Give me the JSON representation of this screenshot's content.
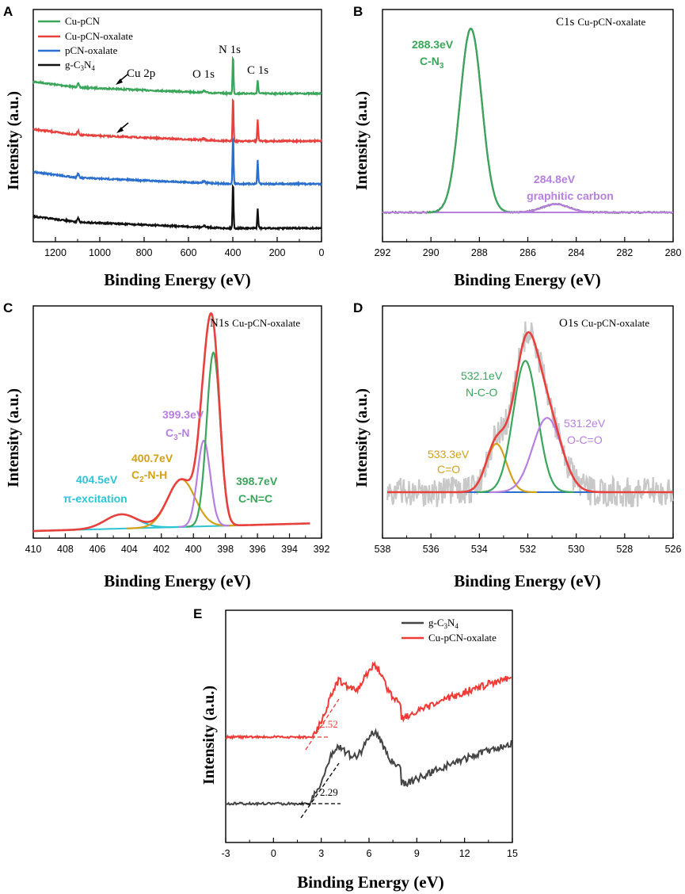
{
  "chart_data": [
    {
      "panel": "A",
      "type": "line",
      "title": "",
      "xlabel": "Binding Energy (eV)",
      "ylabel": "Intensity (a.u.)",
      "xlim": [
        1300,
        0
      ],
      "xticks": [
        "1200",
        "1000",
        "800",
        "600",
        "400",
        "200",
        "0"
      ],
      "series": [
        {
          "name": "Cu-pCN",
          "color": "#3aa65a"
        },
        {
          "name": "Cu-pCN-oxalate",
          "color": "#e8403d"
        },
        {
          "name": "pCN-oxalate",
          "color": "#2a6fcd"
        },
        {
          "name": "g-C3N4",
          "name_main": "g-C",
          "sub1": "3",
          "mid": "N",
          "sub2": "4",
          "color": "#111111"
        }
      ],
      "annotations": {
        "n1s": "N 1s",
        "c1s": "C 1s",
        "o1s": "O 1s",
        "cu2p": "Cu 2p"
      }
    },
    {
      "panel": "B",
      "type": "line",
      "xlabel": "Binding Energy (eV)",
      "ylabel": "Intensity (a.u.)",
      "xlim": [
        292,
        280
      ],
      "xticks": [
        "292",
        "290",
        "288",
        "286",
        "284",
        "282",
        "280"
      ],
      "corner_prefix": "C1s",
      "corner_sample": "Cu-pCN-oxalate",
      "peaks": [
        {
          "ev": "288.3eV",
          "label_main": "C-N",
          "label_sub": "3",
          "color": "#3aa65a",
          "center": 288.35,
          "width": 0.45,
          "height": 1.0
        },
        {
          "ev": "284.8eV",
          "label": "graphitic carbon",
          "color": "#b77fe0",
          "center": 284.85,
          "width": 0.55,
          "height": 0.045
        }
      ]
    },
    {
      "panel": "C",
      "type": "line",
      "xlabel": "Binding Energy (eV)",
      "ylabel": "Intensity (a.u.)",
      "xlim": [
        410,
        392
      ],
      "xticks": [
        "410",
        "408",
        "406",
        "404",
        "402",
        "400",
        "398",
        "396",
        "394",
        "392"
      ],
      "corner_prefix": "N1s",
      "corner_sample": "Cu-pCN-oxalate",
      "peaks": [
        {
          "ev": "404.5eV",
          "label": "π-excitation",
          "color": "#2ec4d4",
          "center": 404.5,
          "width": 1.0,
          "height": 0.06
        },
        {
          "ev": "400.7eV",
          "label_main": "C",
          "label_sub": "2",
          "label_rest": "-N-H",
          "color": "#d4a017",
          "center": 400.75,
          "width": 0.85,
          "height": 0.2
        },
        {
          "ev": "399.3eV",
          "label_main": "C",
          "label_sub": "3",
          "label_rest": "-N",
          "color": "#b77fe0",
          "center": 399.35,
          "width": 0.4,
          "height": 0.36
        },
        {
          "ev": "398.7eV",
          "label": "C-N=C",
          "color": "#3aa65a",
          "center": 398.75,
          "width": 0.42,
          "height": 0.73
        }
      ]
    },
    {
      "panel": "D",
      "type": "line",
      "xlabel": "Binding Energy (eV)",
      "ylabel": "Intensity (a.u.)",
      "xlim": [
        538,
        526
      ],
      "xticks": [
        "538",
        "536",
        "534",
        "532",
        "530",
        "528",
        "526"
      ],
      "corner_prefix": "O1s",
      "corner_sample": "Cu-pCN-oxalate",
      "peaks": [
        {
          "ev": "533.3eV",
          "label": "C=O",
          "color": "#d4a017",
          "center": 533.3,
          "width": 0.42,
          "height": 0.28
        },
        {
          "ev": "532.1eV",
          "label": "N-C-O",
          "color": "#3aa65a",
          "center": 532.1,
          "width": 0.5,
          "height": 0.76
        },
        {
          "ev": "531.2eV",
          "label": "O-C=O",
          "color": "#b77fe0",
          "center": 531.2,
          "width": 0.6,
          "height": 0.43
        }
      ]
    },
    {
      "panel": "E",
      "type": "line",
      "xlabel": "Binding Energy (eV)",
      "ylabel": "Intensity (a.u.)",
      "xlim": [
        -3,
        15
      ],
      "xticks": [
        "-3",
        "0",
        "3",
        "6",
        "9",
        "12",
        "15"
      ],
      "series": [
        {
          "name": "g-C3N4",
          "name_main": "g-C",
          "sub1": "3",
          "mid": "N",
          "sub2": "4",
          "color": "#444444",
          "onset": 2.29
        },
        {
          "name": "Cu-pCN-oxalate",
          "color": "#f03a36",
          "onset": 2.52
        }
      ],
      "annotations": {
        "onset_black": "2.29",
        "onset_red": "2.52"
      }
    }
  ]
}
